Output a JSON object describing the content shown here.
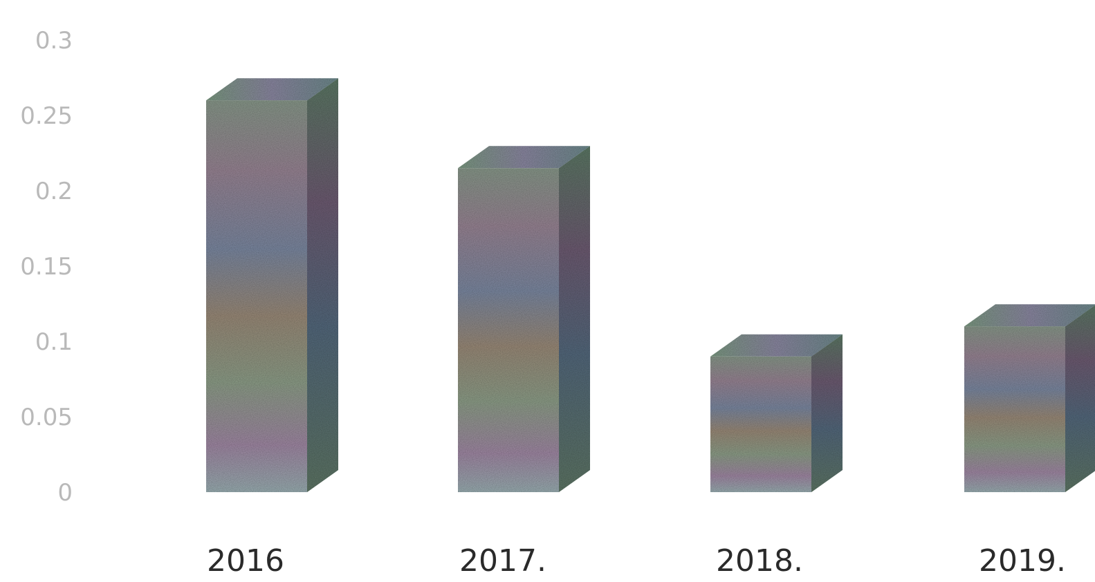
{
  "chart_data": {
    "type": "bar",
    "style": "3d-column",
    "categories": [
      "2016",
      "2017.",
      "2018.",
      "2019."
    ],
    "values": [
      0.26,
      0.215,
      0.09,
      0.11
    ],
    "y_ticks": [
      "0",
      "0.05",
      "0.1",
      "0.15",
      "0.2",
      "0.25",
      "0.3"
    ],
    "ylim": [
      0,
      0.3
    ],
    "grid": false,
    "legend": "none"
  }
}
